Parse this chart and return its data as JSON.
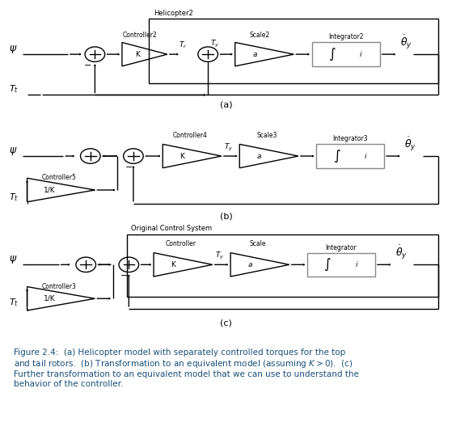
{
  "title_a": "Helicopter2",
  "title_c": "Original Control System",
  "label_a": "(a)",
  "label_b": "(b)",
  "label_c": "(c)",
  "caption_bold": "Figure 2.4:",
  "caption_rest": "  (a) Helicopter model with separately controlled torques for the top\nand tail rotors.  (b) Transformation to an equivalent model (assuming $K > 0$).  (c)\nFurther transformation to an equivalent model that we can use to understand the\nbehavior of the controller.",
  "bg": "#ffffff",
  "line_color": "#000000",
  "box_color": "#888888",
  "text_color": "#000000",
  "caption_color": "#1a4f7a"
}
